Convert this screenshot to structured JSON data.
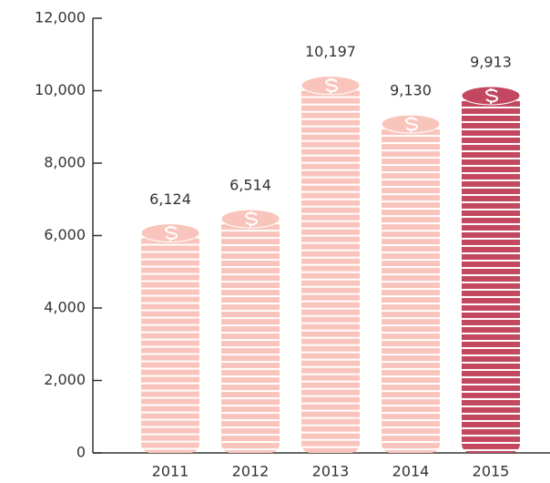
{
  "chart_data": {
    "type": "bar",
    "categories": [
      "2011",
      "2012",
      "2013",
      "2014",
      "2015"
    ],
    "values": [
      6124,
      6514,
      10197,
      9130,
      9913
    ],
    "value_labels": [
      "6,124",
      "6,514",
      "10,197",
      "9,130",
      "9,913"
    ],
    "colors": [
      "#f9c4bb",
      "#f9c4bb",
      "#f9c4bb",
      "#f9c4bb",
      "#c2475f"
    ],
    "ylim": [
      0,
      12000
    ],
    "yticks": [
      0,
      {
        "value": 2000,
        "label": "2,000"
      },
      {
        "value": 4000,
        "label": "4,000"
      },
      {
        "value": 6000,
        "label": "6,000"
      },
      {
        "value": 8000,
        "label": "8,000"
      },
      {
        "value": 10000,
        "label": "10,000"
      },
      {
        "value": 12000,
        "label": "12,000"
      }
    ]
  }
}
